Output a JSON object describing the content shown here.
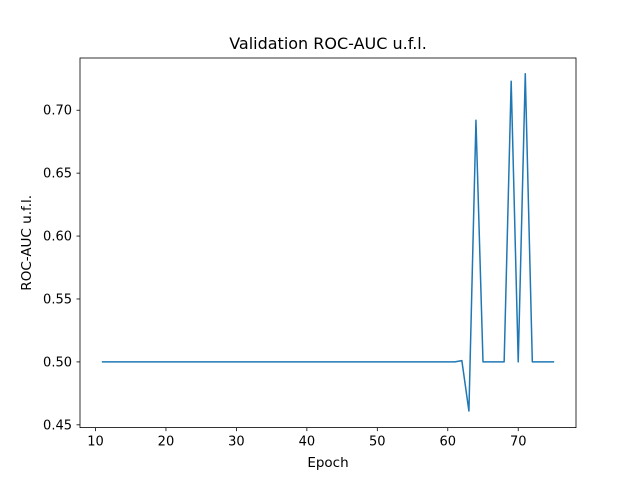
{
  "chart_data": {
    "type": "line",
    "title": "Validation ROC-AUC u.f.l.",
    "xlabel": "Epoch",
    "ylabel": "ROC-AUC u.f.l.",
    "xlim": [
      7.8,
      78.2
    ],
    "ylim": [
      0.4478,
      0.7415
    ],
    "xticks": [
      10,
      20,
      30,
      40,
      50,
      60,
      70
    ],
    "yticks": [
      0.45,
      0.5,
      0.55,
      0.6,
      0.65,
      0.7
    ],
    "ytick_labels": [
      "0.45",
      "0.50",
      "0.55",
      "0.60",
      "0.65",
      "0.70"
    ],
    "grid": false,
    "line_color": "#1f77b4",
    "series": [
      {
        "x": [
          11,
          12,
          13,
          14,
          15,
          16,
          17,
          18,
          19,
          20,
          21,
          22,
          23,
          24,
          25,
          26,
          27,
          28,
          29,
          30,
          31,
          32,
          33,
          34,
          35,
          36,
          37,
          38,
          39,
          40,
          41,
          42,
          43,
          44,
          45,
          46,
          47,
          48,
          49,
          50,
          51,
          52,
          53,
          54,
          55,
          56,
          57,
          58,
          59,
          60,
          61,
          62,
          63,
          64,
          65,
          66,
          67,
          68,
          69,
          70,
          71,
          72,
          73,
          74,
          75
        ],
        "y": [
          0.5,
          0.5,
          0.5,
          0.5,
          0.5,
          0.5,
          0.5,
          0.5,
          0.5,
          0.5,
          0.5,
          0.5,
          0.5,
          0.5,
          0.5,
          0.5,
          0.5,
          0.5,
          0.5,
          0.5,
          0.5,
          0.5,
          0.5,
          0.5,
          0.5,
          0.5,
          0.5,
          0.5,
          0.5,
          0.5,
          0.5,
          0.5,
          0.5,
          0.5,
          0.5,
          0.5,
          0.5,
          0.5,
          0.5,
          0.5,
          0.5,
          0.5,
          0.5,
          0.5,
          0.5,
          0.5,
          0.5,
          0.5,
          0.5,
          0.5,
          0.5,
          0.501,
          0.461,
          0.692,
          0.5,
          0.5,
          0.5,
          0.5,
          0.723,
          0.5,
          0.729,
          0.5,
          0.5,
          0.5,
          0.5
        ]
      }
    ]
  }
}
